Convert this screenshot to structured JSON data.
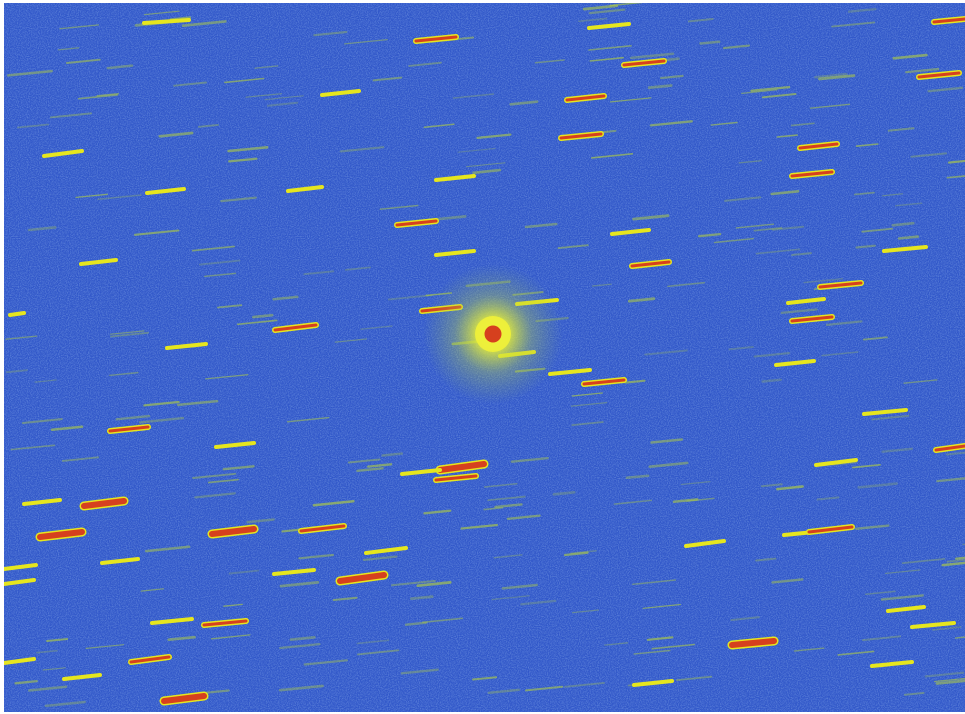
{
  "image": {
    "subject": "comet",
    "palette": {
      "background": "#2f55c9",
      "noise_light": "#4a78de",
      "noise_dark": "#1f40a8",
      "faint_trail": "#a8c64a",
      "bright_trail": "#e6e61e",
      "saturated_core": "#d6401e",
      "coma_glow": "#d8e43a"
    }
  }
}
